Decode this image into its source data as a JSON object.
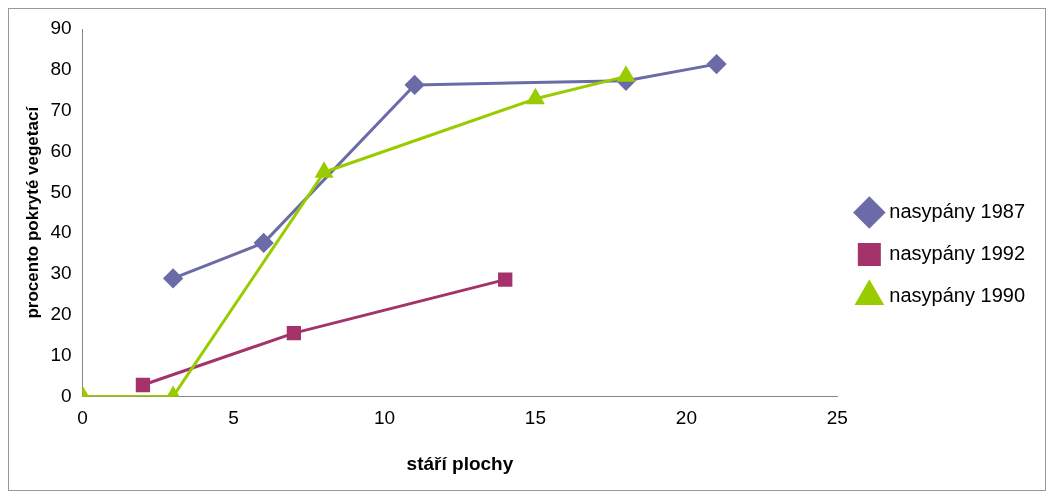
{
  "chart_data": {
    "type": "line",
    "xlabel": "stáří plochy",
    "ylabel": "procento pokryté vegetací",
    "xlim": [
      0,
      25
    ],
    "xticks": [
      0,
      5,
      10,
      15,
      20,
      25
    ],
    "ylim": [
      0,
      90
    ],
    "yticks": [
      0,
      10,
      20,
      30,
      40,
      50,
      60,
      70,
      80,
      90
    ],
    "grid": false,
    "legend": "right",
    "line_style": "solid",
    "series": [
      {
        "name": "nasypány 1987",
        "color": "#6b6ba8",
        "marker": "diamond",
        "x": [
          3,
          6,
          11,
          18,
          21
        ],
        "values": [
          28.9,
          37.6,
          76.3,
          77.3,
          81.4
        ]
      },
      {
        "name": "nasypány 1992",
        "color": "#a3336a",
        "marker": "square",
        "x": [
          2,
          7,
          14
        ],
        "values": [
          2.8,
          15.5,
          28.6
        ]
      },
      {
        "name": "nasypány 1990",
        "color": "#99cc00",
        "marker": "triangle",
        "x": [
          0,
          3,
          8,
          15,
          18
        ],
        "values": [
          0,
          0,
          54.9,
          72.9,
          78.4
        ]
      }
    ]
  }
}
